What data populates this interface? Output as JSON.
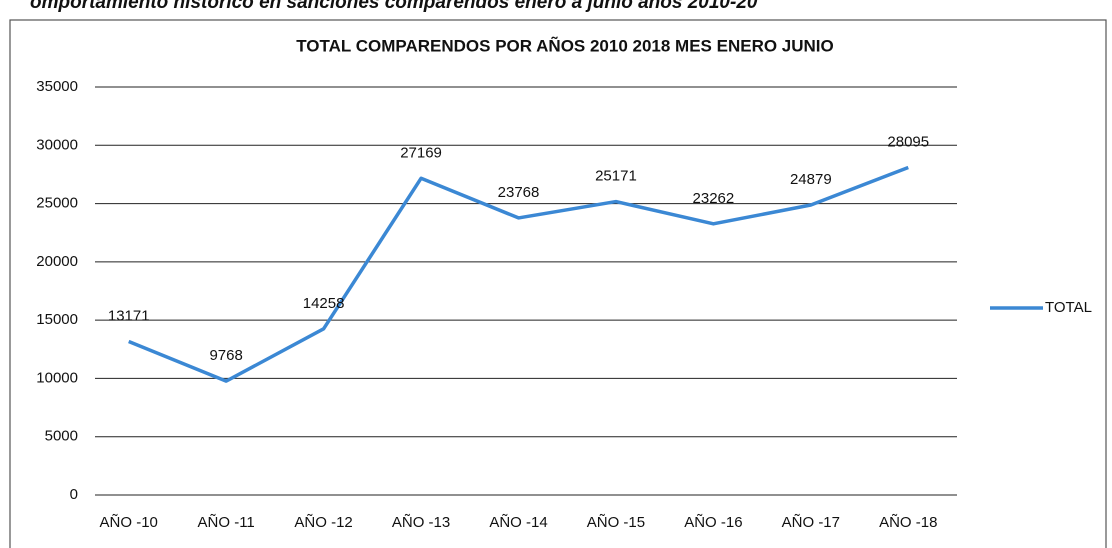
{
  "caption": "omportamiento histórico en sanciones comparendos enero a junio años 2010-20",
  "chart_data": {
    "type": "line",
    "title": "TOTAL COMPARENDOS  POR AÑOS 2010 2018 MES ENERO JUNIO",
    "categories": [
      "AÑO -10",
      "AÑO -11",
      "AÑO -12",
      "AÑO -13",
      "AÑO -14",
      "AÑO -15",
      "AÑO -16",
      "AÑO -17",
      "AÑO -18"
    ],
    "series": [
      {
        "name": "TOTAL",
        "color": "#3b88d4",
        "values": [
          13171,
          9768,
          14258,
          27169,
          23768,
          25171,
          23262,
          24879,
          28095
        ]
      }
    ],
    "ylim": [
      0,
      35000
    ],
    "yticks": [
      0,
      5000,
      10000,
      15000,
      20000,
      25000,
      30000,
      35000
    ],
    "grid": true,
    "legend": "right",
    "data_labels": true
  }
}
